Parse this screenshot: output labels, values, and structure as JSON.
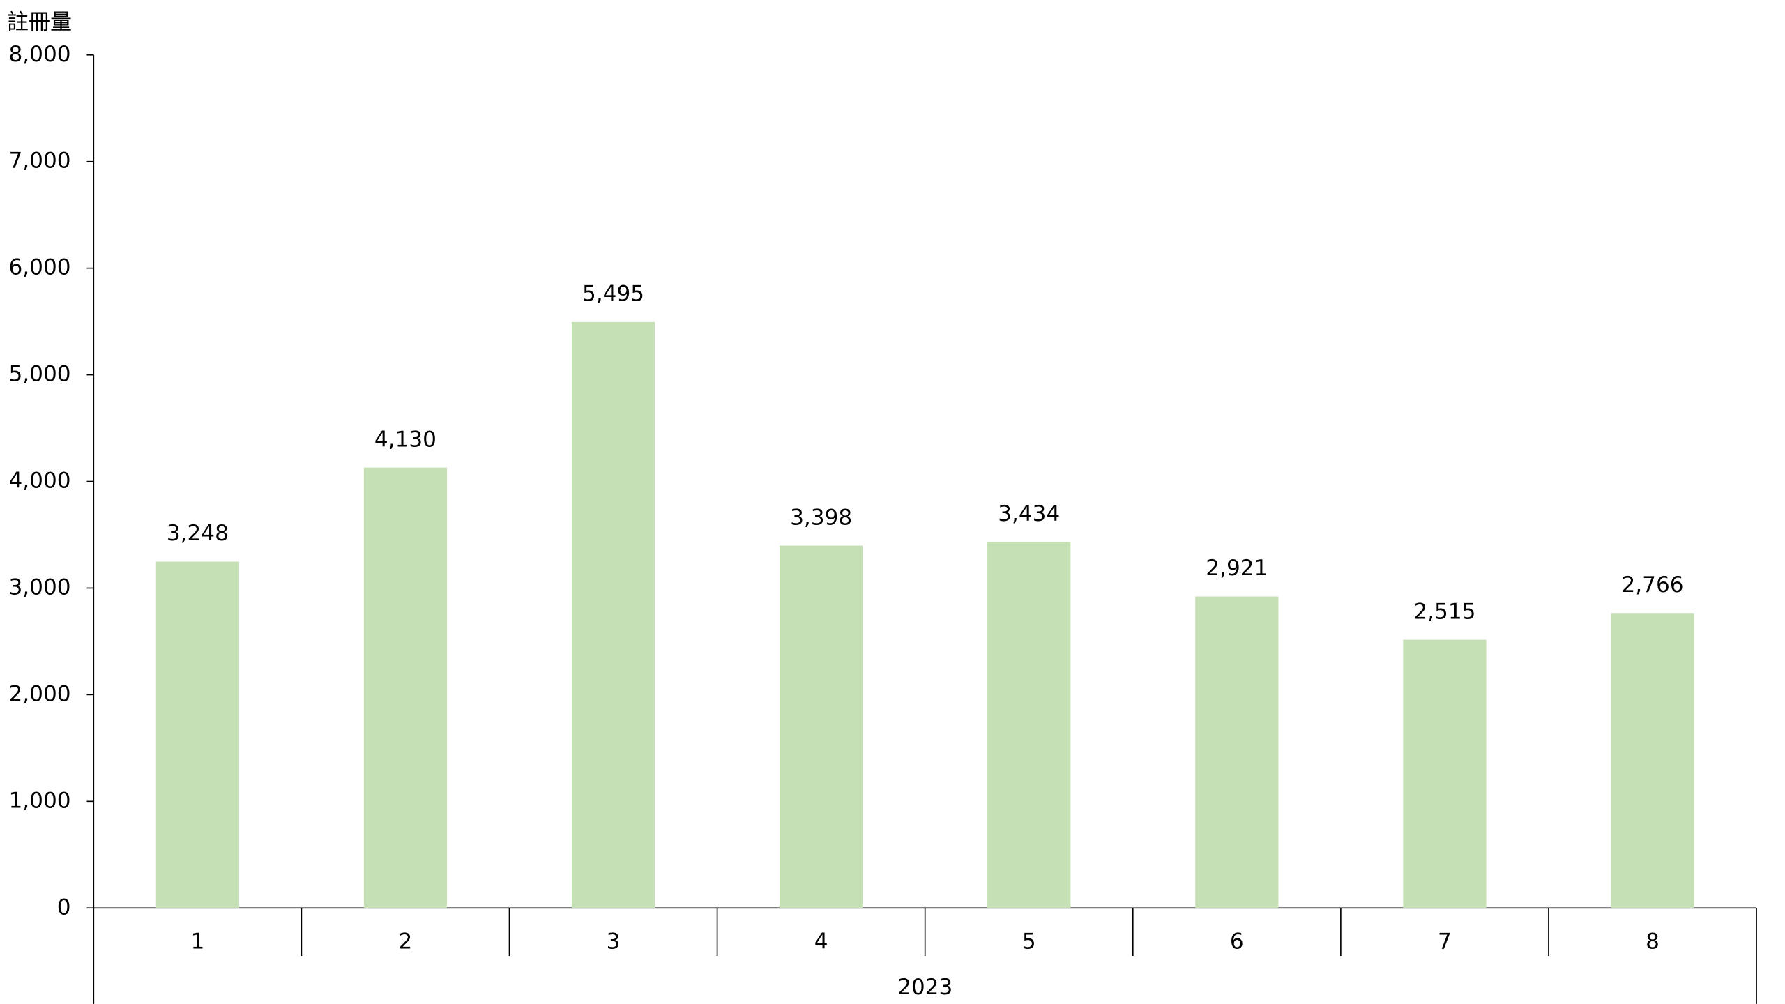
{
  "chart_data": {
    "type": "bar",
    "y_label": "註冊量",
    "categories": [
      "1",
      "2",
      "3",
      "4",
      "5",
      "6",
      "7",
      "8"
    ],
    "group_label": "2023",
    "values": [
      3248,
      4130,
      5495,
      3398,
      3434,
      2921,
      2515,
      2766
    ],
    "value_labels": [
      "3,248",
      "4,130",
      "5,495",
      "3,398",
      "3,434",
      "2,921",
      "2,515",
      "2,766"
    ],
    "color": "#c5e0b4",
    "ylim": [
      0,
      8000
    ],
    "yticks": [
      0,
      {
        "value": 1000,
        "label": "1,000"
      },
      {
        "value": 2000,
        "label": "2,000"
      },
      {
        "value": 3000,
        "label": "3,000"
      },
      {
        "value": 4000,
        "label": "4,000"
      },
      {
        "value": 5000,
        "label": "5,000"
      },
      {
        "value": 6000,
        "label": "6,000"
      },
      {
        "value": 7000,
        "label": "7,000"
      },
      {
        "value": 8000,
        "label": "8,000"
      }
    ],
    "grid": false
  }
}
